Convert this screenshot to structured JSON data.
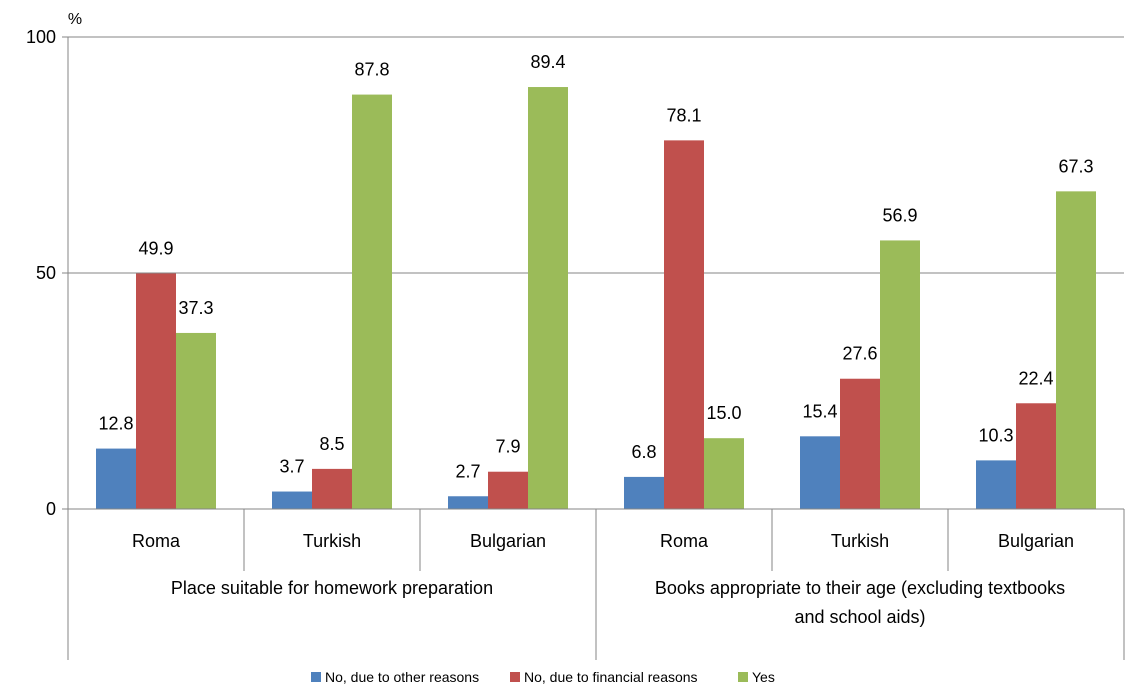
{
  "chart_data": {
    "type": "bar",
    "ylabel": "%",
    "ylim": [
      0,
      100
    ],
    "yticks": [
      "0",
      "50",
      "100"
    ],
    "grid": true,
    "legend_position": "bottom",
    "groups": [
      {
        "label": "Place suitable for homework preparation",
        "lines": [
          "Place suitable for homework preparation"
        ]
      },
      {
        "label": "Books appropriate to their age (excluding textbooks and school aids)",
        "lines": [
          "Books appropriate to their age (excluding textbooks",
          "and school aids)"
        ]
      }
    ],
    "categories": [
      "Roma",
      "Turkish",
      "Bulgarian",
      "Roma",
      "Turkish",
      "Bulgarian"
    ],
    "series": [
      {
        "name": "No, due to other reasons",
        "color": "#4F81BD",
        "values": [
          12.8,
          3.7,
          2.7,
          6.8,
          15.4,
          10.3
        ],
        "labels": [
          "12.8",
          "3.7",
          "2.7",
          "6.8",
          "15.4",
          "10.3"
        ]
      },
      {
        "name": "No, due to financial reasons",
        "color": "#C0504D",
        "values": [
          49.9,
          8.5,
          7.9,
          78.1,
          27.6,
          22.4
        ],
        "labels": [
          "49.9",
          "8.5",
          "7.9",
          "78.1",
          "27.6",
          "22.4"
        ]
      },
      {
        "name": "Yes",
        "color": "#9BBB59",
        "values": [
          37.3,
          87.8,
          89.4,
          15.0,
          56.9,
          67.3
        ],
        "labels": [
          "37.3",
          "87.8",
          "89.4",
          "15.0",
          "56.9",
          "67.3"
        ]
      }
    ]
  }
}
